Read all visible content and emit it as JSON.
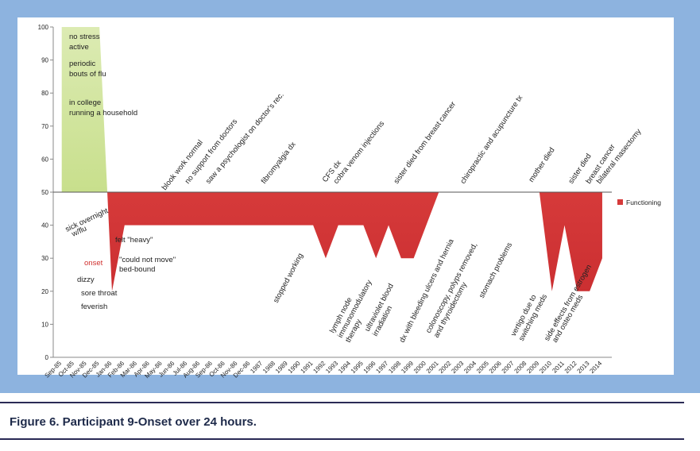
{
  "chart_data": {
    "type": "area",
    "categories": [
      "Sep-85",
      "Oct-85",
      "Nov-85",
      "Dec-85",
      "Jan-86",
      "Feb-86",
      "Mar-86",
      "Apr-86",
      "May-86",
      "Jun-86",
      "Jul-86",
      "Aug-86",
      "Sep-86",
      "Oct-86",
      "Nov-86",
      "Dec-86",
      "1987",
      "1988",
      "1989",
      "1990",
      "1991",
      "1992",
      "1993",
      "1994",
      "1995",
      "1996",
      "1997",
      "1998",
      "1999",
      "2000",
      "2001",
      "2002",
      "2003",
      "2004",
      "2005",
      "2006",
      "2007",
      "2008",
      "2009",
      "2010",
      "2011",
      "2012",
      "2013",
      "2014"
    ],
    "series": [
      {
        "name": "Functioning",
        "color": "#d63a3a",
        "values": [
          100,
          100,
          100,
          100,
          20,
          40,
          40,
          40,
          40,
          40,
          40,
          40,
          40,
          40,
          40,
          40,
          40,
          40,
          40,
          40,
          40,
          30,
          40,
          40,
          40,
          30,
          40,
          30,
          30,
          40,
          50,
          50,
          50,
          50,
          50,
          50,
          50,
          50,
          50,
          20,
          40,
          20,
          20,
          30
        ]
      }
    ],
    "above_color": "#c8df8c",
    "baseline": 50,
    "ylim": [
      0,
      100
    ],
    "yticks": [
      0,
      10,
      20,
      30,
      40,
      50,
      60,
      70,
      80,
      90,
      100
    ],
    "legend": "right",
    "annotations": [
      "no stress",
      "active",
      "periodic",
      "bouts of flu",
      "in college",
      "running a household",
      "sick overnight",
      "w/flu",
      "felt \"heavy\"",
      "onset",
      "\"could not move\"",
      "bed-bound",
      "dizzy",
      "sore throat",
      "feverish",
      "blook work normal",
      "no support from doctors",
      "saw a psychologist on doctor's rec.",
      "fibromyalgia dx",
      "CFS dx",
      "cobra venom injections",
      "sister died from breast cancer",
      "chiropractic and acupuncture tx",
      "mother died",
      "sister died",
      "breast cancer",
      "bilateral masectomy",
      "stopped working",
      "lymph node",
      "immunomodulatory",
      "therapy",
      "ultraviolet blood",
      "irradiation",
      "dx with bleeding ulcers and hernia",
      "colonoscopy, polyps removed,",
      "and thyroidectomy",
      "stomach problems",
      "vertigo due to",
      "switching meds",
      "side effects from estrogen",
      "and osteo meds"
    ]
  },
  "caption": "Figure 6. Participant 9-Onset over 24 hours."
}
